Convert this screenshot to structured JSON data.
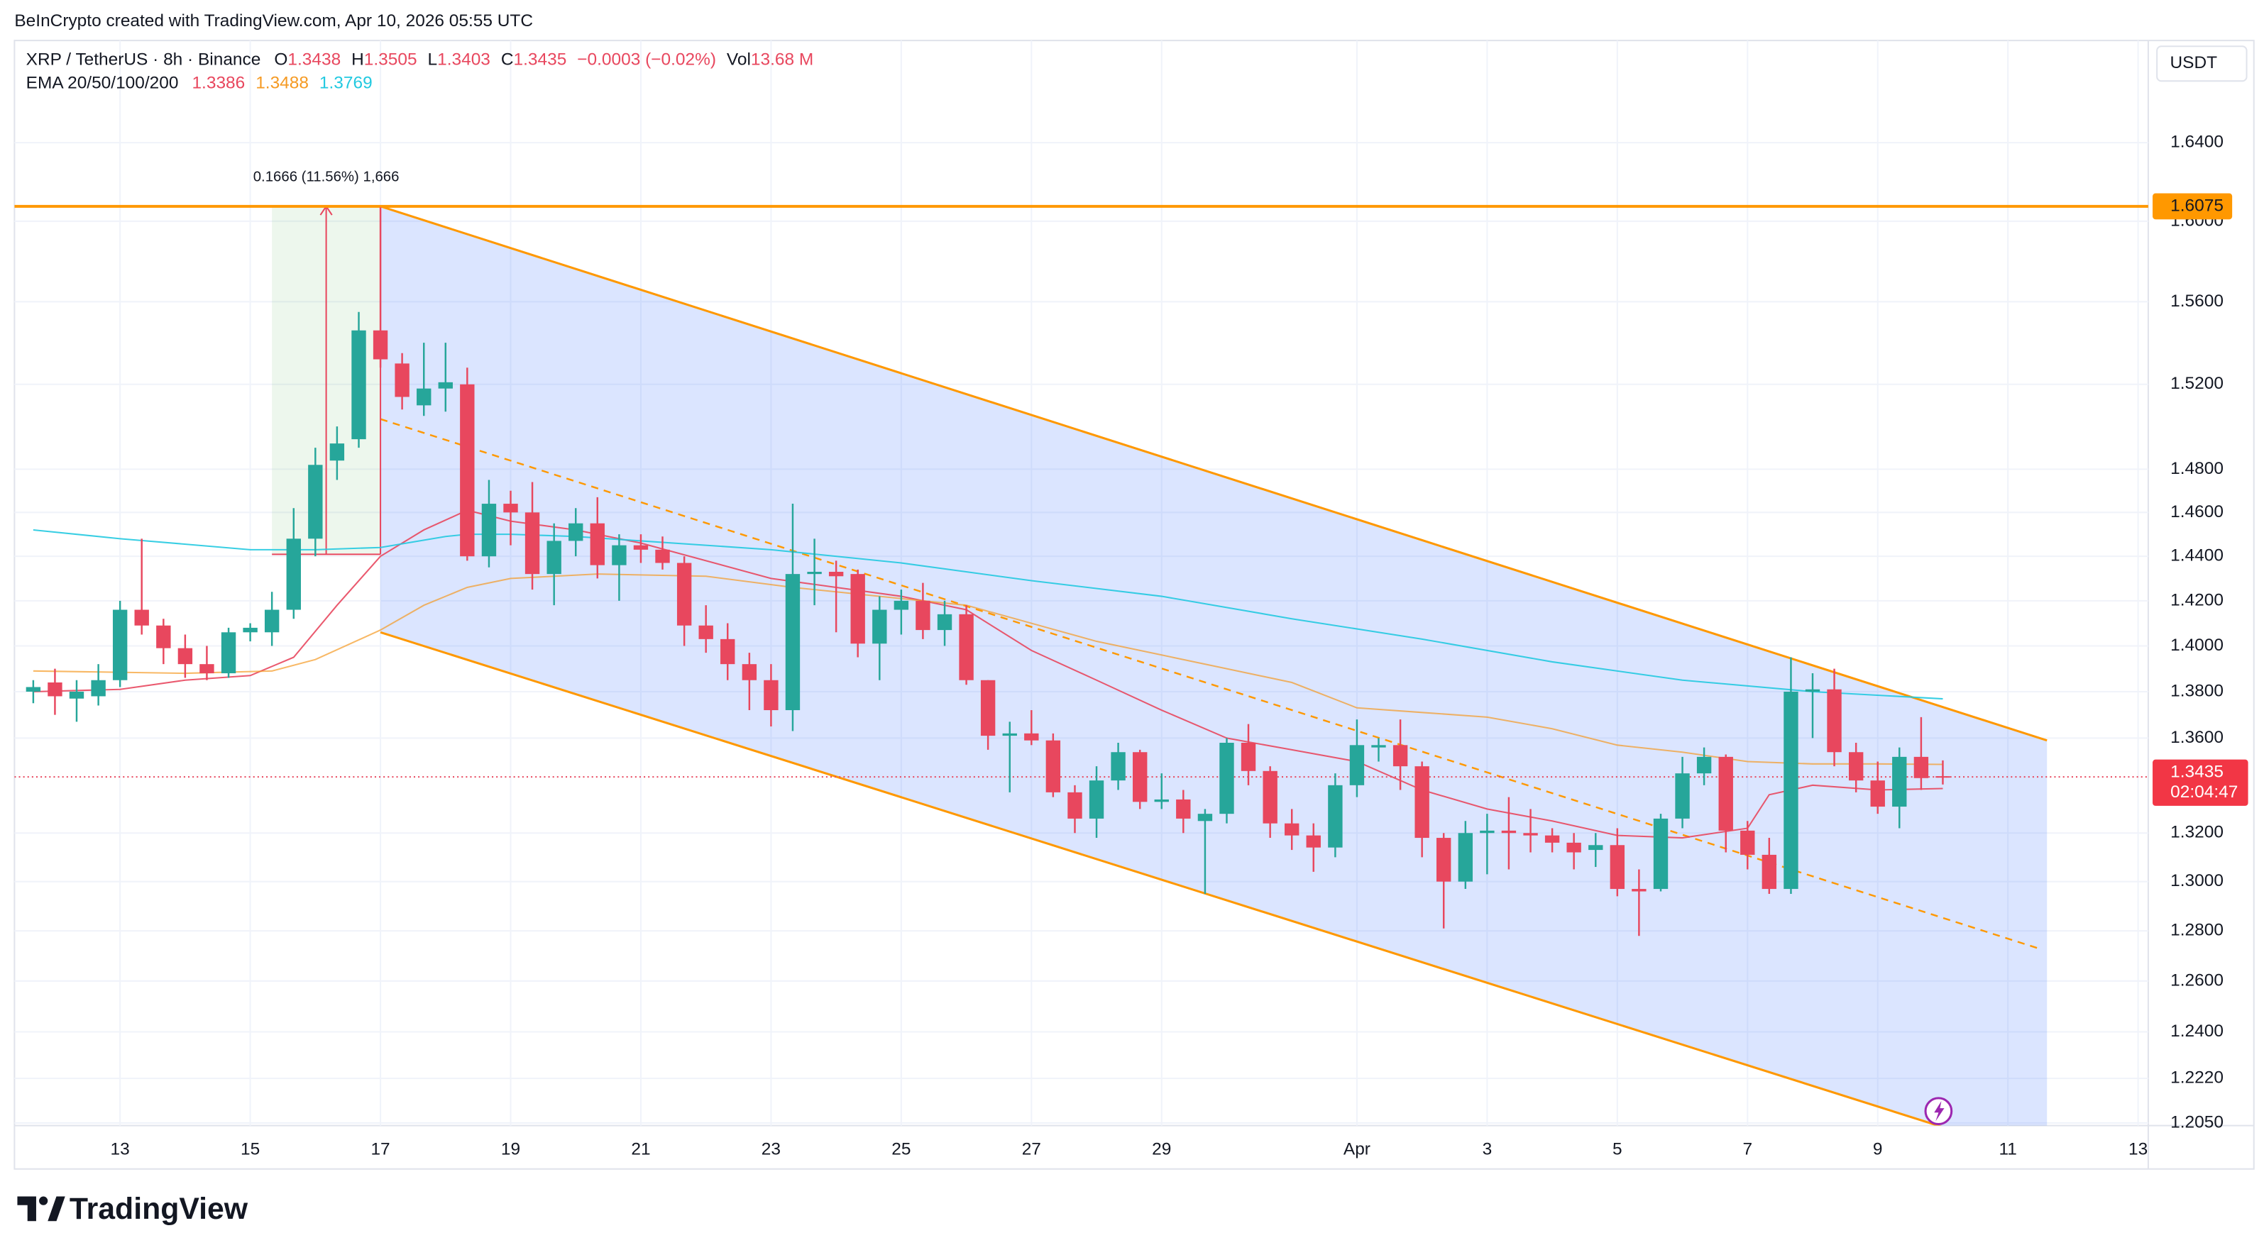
{
  "chart_data": {
    "type": "candlestick",
    "credit": "BeInCrypto created with TradingView.com, Apr 10, 2026 05:55 UTC",
    "symbol": "XRP / TetherUS · 8h · Binance",
    "legend": [
      {
        "label": "O",
        "value": 1.3438
      },
      {
        "label": "H",
        "value": 1.3505
      },
      {
        "label": "L",
        "value": 1.3403
      },
      {
        "label": "C",
        "value": 1.3435
      }
    ],
    "change": "−0.0003 (−0.02%)",
    "volume_label": "Vol",
    "volume": "13.68 M",
    "indicator": "EMA 20/50/100/200",
    "currency": "USDT",
    "brand": "TradingView",
    "log_scale": true,
    "grid": true,
    "up_color": "#26a69a",
    "down_color": "#e8475e",
    "xlim": [
      11.378,
      44.156
    ],
    "xticks": [
      13,
      15,
      17,
      19,
      21,
      23,
      25,
      27,
      29,
      {
        "value": 32,
        "label": "Apr"
      },
      {
        "value": 34,
        "label": "3"
      },
      {
        "value": 36,
        "label": "5"
      },
      {
        "value": 38,
        "label": "7"
      },
      {
        "value": 40,
        "label": "9"
      },
      {
        "value": 42,
        "label": "11"
      },
      {
        "value": 44,
        "label": "13"
      }
    ],
    "ylim": [
      1.204,
      1.692
    ],
    "yticks": [
      {
        "value": 1.64,
        "label": "1.6400"
      },
      {
        "value": 1.6,
        "label": "1.6000"
      },
      {
        "value": 1.56,
        "label": "1.5600"
      },
      {
        "value": 1.52,
        "label": "1.5200"
      },
      {
        "value": 1.48,
        "label": "1.4800"
      },
      {
        "value": 1.46,
        "label": "1.4600"
      },
      {
        "value": 1.44,
        "label": "1.4400"
      },
      {
        "value": 1.42,
        "label": "1.4200"
      },
      {
        "value": 1.4,
        "label": "1.4000"
      },
      {
        "value": 1.38,
        "label": "1.3800"
      },
      {
        "value": 1.36,
        "label": "1.3600"
      },
      {
        "value": 1.32,
        "label": "1.3200"
      },
      {
        "value": 1.3,
        "label": "1.3000"
      },
      {
        "value": 1.28,
        "label": "1.2800"
      },
      {
        "value": 1.26,
        "label": "1.2600"
      },
      {
        "value": 1.24,
        "label": "1.2400"
      },
      {
        "value": 1.222,
        "label": "1.2220"
      },
      {
        "value": 1.205,
        "label": "1.2050"
      }
    ],
    "x": [
      11.667,
      12,
      12.333,
      12.667,
      13,
      13.333,
      13.667,
      14,
      14.333,
      14.667,
      15,
      15.333,
      15.667,
      16,
      16.333,
      16.667,
      17,
      17.333,
      17.667,
      18,
      18.333,
      18.667,
      19,
      19.333,
      19.667,
      20,
      20.333,
      20.667,
      21,
      21.333,
      21.667,
      22,
      22.333,
      22.667,
      23,
      23.333,
      23.667,
      24,
      24.333,
      24.667,
      25,
      25.333,
      25.667,
      26,
      26.333,
      26.667,
      27,
      27.333,
      27.667,
      28,
      28.333,
      28.667,
      29,
      29.333,
      29.667,
      30,
      30.333,
      30.667,
      31,
      31.333,
      31.667,
      32,
      32.333,
      32.667,
      33,
      33.333,
      33.667,
      34,
      34.333,
      34.667,
      35,
      35.333,
      35.667,
      36,
      36.333,
      36.667,
      37,
      37.333,
      37.667,
      38,
      38.333,
      38.667,
      39,
      39.333,
      39.667,
      40,
      40.333,
      40.667,
      41
    ],
    "open": [
      1.38,
      1.384,
      1.377,
      1.378,
      1.385,
      1.416,
      1.409,
      1.399,
      1.392,
      1.388,
      1.406,
      1.406,
      1.416,
      1.448,
      1.484,
      1.494,
      1.546,
      1.53,
      1.51,
      1.518,
      1.52,
      1.44,
      1.464,
      1.46,
      1.432,
      1.447,
      1.455,
      1.436,
      1.445,
      1.443,
      1.437,
      1.409,
      1.403,
      1.392,
      1.385,
      1.372,
      1.432,
      1.433,
      1.432,
      1.401,
      1.416,
      1.42,
      1.407,
      1.414,
      1.385,
      1.361,
      1.362,
      1.359,
      1.337,
      1.326,
      1.342,
      1.354,
      1.333,
      1.334,
      1.325,
      1.328,
      1.358,
      1.346,
      1.324,
      1.319,
      1.314,
      1.34,
      1.356,
      1.357,
      1.348,
      1.318,
      1.3,
      1.32,
      1.321,
      1.32,
      1.319,
      1.316,
      1.313,
      1.315,
      1.297,
      1.297,
      1.326,
      1.345,
      1.352,
      1.321,
      1.311,
      1.297,
      1.38,
      1.381,
      1.354,
      1.342,
      1.331,
      1.352,
      1.3438
    ],
    "high": [
      1.385,
      1.39,
      1.385,
      1.392,
      1.42,
      1.448,
      1.412,
      1.405,
      1.4,
      1.408,
      1.41,
      1.424,
      1.462,
      1.49,
      1.5,
      1.555,
      1.607,
      1.535,
      1.54,
      1.54,
      1.528,
      1.475,
      1.47,
      1.474,
      1.455,
      1.462,
      1.467,
      1.45,
      1.45,
      1.449,
      1.44,
      1.418,
      1.41,
      1.397,
      1.392,
      1.464,
      1.448,
      1.438,
      1.434,
      1.422,
      1.425,
      1.428,
      1.42,
      1.418,
      1.385,
      1.367,
      1.372,
      1.362,
      1.34,
      1.348,
      1.358,
      1.355,
      1.345,
      1.338,
      1.33,
      1.36,
      1.366,
      1.348,
      1.33,
      1.324,
      1.345,
      1.368,
      1.36,
      1.368,
      1.35,
      1.32,
      1.325,
      1.328,
      1.335,
      1.33,
      1.322,
      1.32,
      1.32,
      1.322,
      1.305,
      1.328,
      1.352,
      1.356,
      1.353,
      1.325,
      1.318,
      1.395,
      1.388,
      1.39,
      1.358,
      1.35,
      1.356,
      1.369,
      1.3505
    ],
    "low": [
      1.375,
      1.37,
      1.367,
      1.374,
      1.382,
      1.405,
      1.392,
      1.386,
      1.385,
      1.386,
      1.402,
      1.4,
      1.412,
      1.44,
      1.475,
      1.49,
      1.528,
      1.508,
      1.505,
      1.507,
      1.438,
      1.435,
      1.445,
      1.425,
      1.418,
      1.44,
      1.43,
      1.42,
      1.437,
      1.434,
      1.4,
      1.397,
      1.385,
      1.372,
      1.365,
      1.363,
      1.418,
      1.406,
      1.395,
      1.385,
      1.405,
      1.403,
      1.4,
      1.383,
      1.355,
      1.337,
      1.357,
      1.335,
      1.32,
      1.318,
      1.338,
      1.33,
      1.33,
      1.32,
      1.295,
      1.324,
      1.34,
      1.318,
      1.313,
      1.304,
      1.31,
      1.335,
      1.35,
      1.338,
      1.31,
      1.281,
      1.297,
      1.303,
      1.305,
      1.312,
      1.312,
      1.305,
      1.306,
      1.294,
      1.278,
      1.296,
      1.322,
      1.34,
      1.312,
      1.305,
      1.295,
      1.295,
      1.36,
      1.348,
      1.337,
      1.328,
      1.322,
      1.338,
      1.3403
    ],
    "close": [
      1.382,
      1.378,
      1.38,
      1.385,
      1.416,
      1.409,
      1.399,
      1.392,
      1.388,
      1.406,
      1.408,
      1.416,
      1.448,
      1.482,
      1.492,
      1.546,
      1.532,
      1.514,
      1.518,
      1.521,
      1.44,
      1.464,
      1.46,
      1.432,
      1.447,
      1.455,
      1.436,
      1.445,
      1.443,
      1.437,
      1.409,
      1.403,
      1.392,
      1.385,
      1.372,
      1.432,
      1.433,
      1.431,
      1.401,
      1.416,
      1.42,
      1.407,
      1.414,
      1.385,
      1.361,
      1.362,
      1.359,
      1.337,
      1.326,
      1.342,
      1.354,
      1.333,
      1.334,
      1.326,
      1.328,
      1.358,
      1.346,
      1.324,
      1.319,
      1.314,
      1.34,
      1.357,
      1.357,
      1.348,
      1.318,
      1.3,
      1.32,
      1.321,
      1.32,
      1.319,
      1.316,
      1.312,
      1.315,
      1.297,
      1.296,
      1.326,
      1.345,
      1.352,
      1.321,
      1.311,
      1.297,
      1.38,
      1.381,
      1.354,
      1.342,
      1.331,
      1.352,
      1.343,
      1.3435
    ],
    "ema": [
      {
        "color": "#e8475e",
        "value": 1.3386,
        "x": [
          11.667,
          13,
          14,
          15,
          15.667,
          16.333,
          17,
          17.667,
          18.333,
          19,
          20,
          21,
          22,
          23,
          24,
          25,
          26,
          27,
          28,
          29,
          30,
          31,
          32,
          33,
          34,
          35,
          36,
          37,
          38,
          38.333,
          39,
          40,
          41
        ],
        "values": [
          1.38,
          1.381,
          1.385,
          1.387,
          1.395,
          1.418,
          1.44,
          1.452,
          1.461,
          1.456,
          1.452,
          1.446,
          1.438,
          1.43,
          1.426,
          1.422,
          1.416,
          1.398,
          1.385,
          1.372,
          1.36,
          1.355,
          1.35,
          1.338,
          1.33,
          1.325,
          1.319,
          1.318,
          1.322,
          1.336,
          1.34,
          1.338,
          1.3386
        ]
      },
      {
        "color": "#f59a23",
        "value": 1.3488,
        "x": [
          11.667,
          14,
          15.333,
          16,
          17,
          17.667,
          18.333,
          19,
          20.333,
          22,
          23.333,
          24,
          26,
          27,
          28,
          29,
          30,
          31,
          32,
          33,
          34,
          35,
          36,
          37,
          38,
          39,
          40,
          41
        ],
        "values": [
          1.389,
          1.388,
          1.389,
          1.394,
          1.407,
          1.418,
          1.426,
          1.43,
          1.432,
          1.431,
          1.426,
          1.424,
          1.418,
          1.41,
          1.402,
          1.396,
          1.39,
          1.384,
          1.373,
          1.371,
          1.369,
          1.364,
          1.357,
          1.354,
          1.35,
          1.349,
          1.349,
          1.3488
        ]
      },
      {
        "color": "#22c9e0",
        "value": 1.3769,
        "x": [
          11.667,
          13,
          15,
          16,
          17,
          18,
          18.333,
          19,
          20,
          21,
          23,
          25,
          27,
          29,
          31,
          33,
          35,
          37,
          39,
          41
        ],
        "values": [
          1.452,
          1.448,
          1.443,
          1.443,
          1.444,
          1.449,
          1.45,
          1.45,
          1.449,
          1.447,
          1.443,
          1.437,
          1.429,
          1.422,
          1.412,
          1.403,
          1.393,
          1.385,
          1.38,
          1.3769
        ]
      }
    ],
    "channel": {
      "color": "#ff9800",
      "upper": {
        "x": [
          17,
          42.6
        ],
        "values": [
          1.6075,
          1.359
        ]
      },
      "lower": {
        "x": [
          17,
          42.6
        ],
        "values": [
          1.406,
          1.191
        ]
      },
      "mid": {
        "x": [
          17,
          42.49
        ],
        "values": [
          1.5035,
          1.2728
        ]
      }
    },
    "measure": {
      "x": [
        15.333,
        17
      ],
      "values": [
        1.4409,
        1.6075
      ],
      "label": "0.1666 (11.56%) 1,666"
    },
    "level": 1.6075,
    "current_price": 1.3435,
    "countdown": "02:04:47"
  }
}
